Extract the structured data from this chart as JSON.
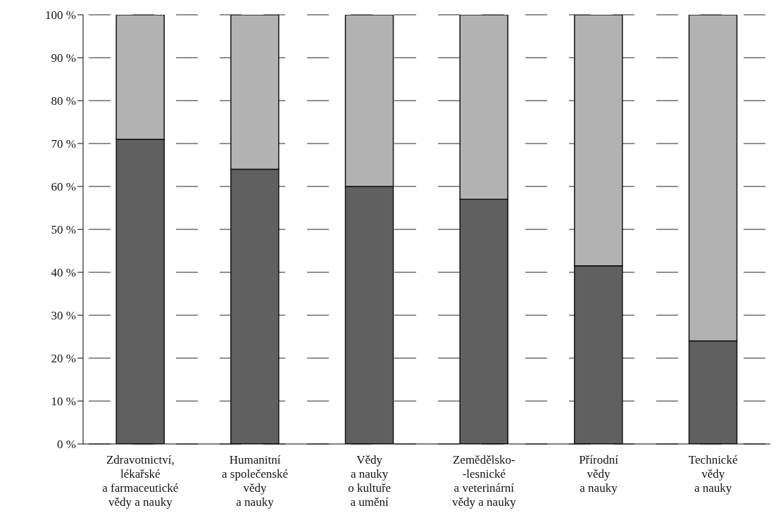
{
  "chart_data": {
    "type": "bar",
    "stacked": true,
    "categories": [
      "Zdravotnictví,\nlékařské\na farmaceutické\nvědy a nauky",
      "Humanitní\na společenské\nvědy\na nauky",
      "Vědy\na nauky\no kultuře\na umění",
      "Zemědělsko-\n-lesnické\na veterinární\nvědy a nauky",
      "Přírodní\nvědy\na nauky",
      "Technické\nvědy\na nauky"
    ],
    "series": [
      {
        "color": "#606060",
        "values": [
          71,
          64,
          60,
          57,
          41.5,
          24
        ]
      },
      {
        "color": "#b2b2b2",
        "values": [
          29,
          36,
          40,
          43,
          58.5,
          76
        ]
      }
    ],
    "ylim": [
      0,
      100
    ],
    "yticks": [
      {
        "value": 0,
        "label": "0 %"
      },
      {
        "value": 10,
        "label": "10 %"
      },
      {
        "value": 20,
        "label": "20 %"
      },
      {
        "value": 30,
        "label": "30 %"
      },
      {
        "value": 40,
        "label": "40 %"
      },
      {
        "value": 50,
        "label": "50 %"
      },
      {
        "value": 60,
        "label": "60 %"
      },
      {
        "value": 70,
        "label": "70 %"
      },
      {
        "value": 80,
        "label": "80 %"
      },
      {
        "value": 90,
        "label": "90 %"
      },
      {
        "value": 100,
        "label": "100 %"
      }
    ],
    "grid": "y"
  }
}
